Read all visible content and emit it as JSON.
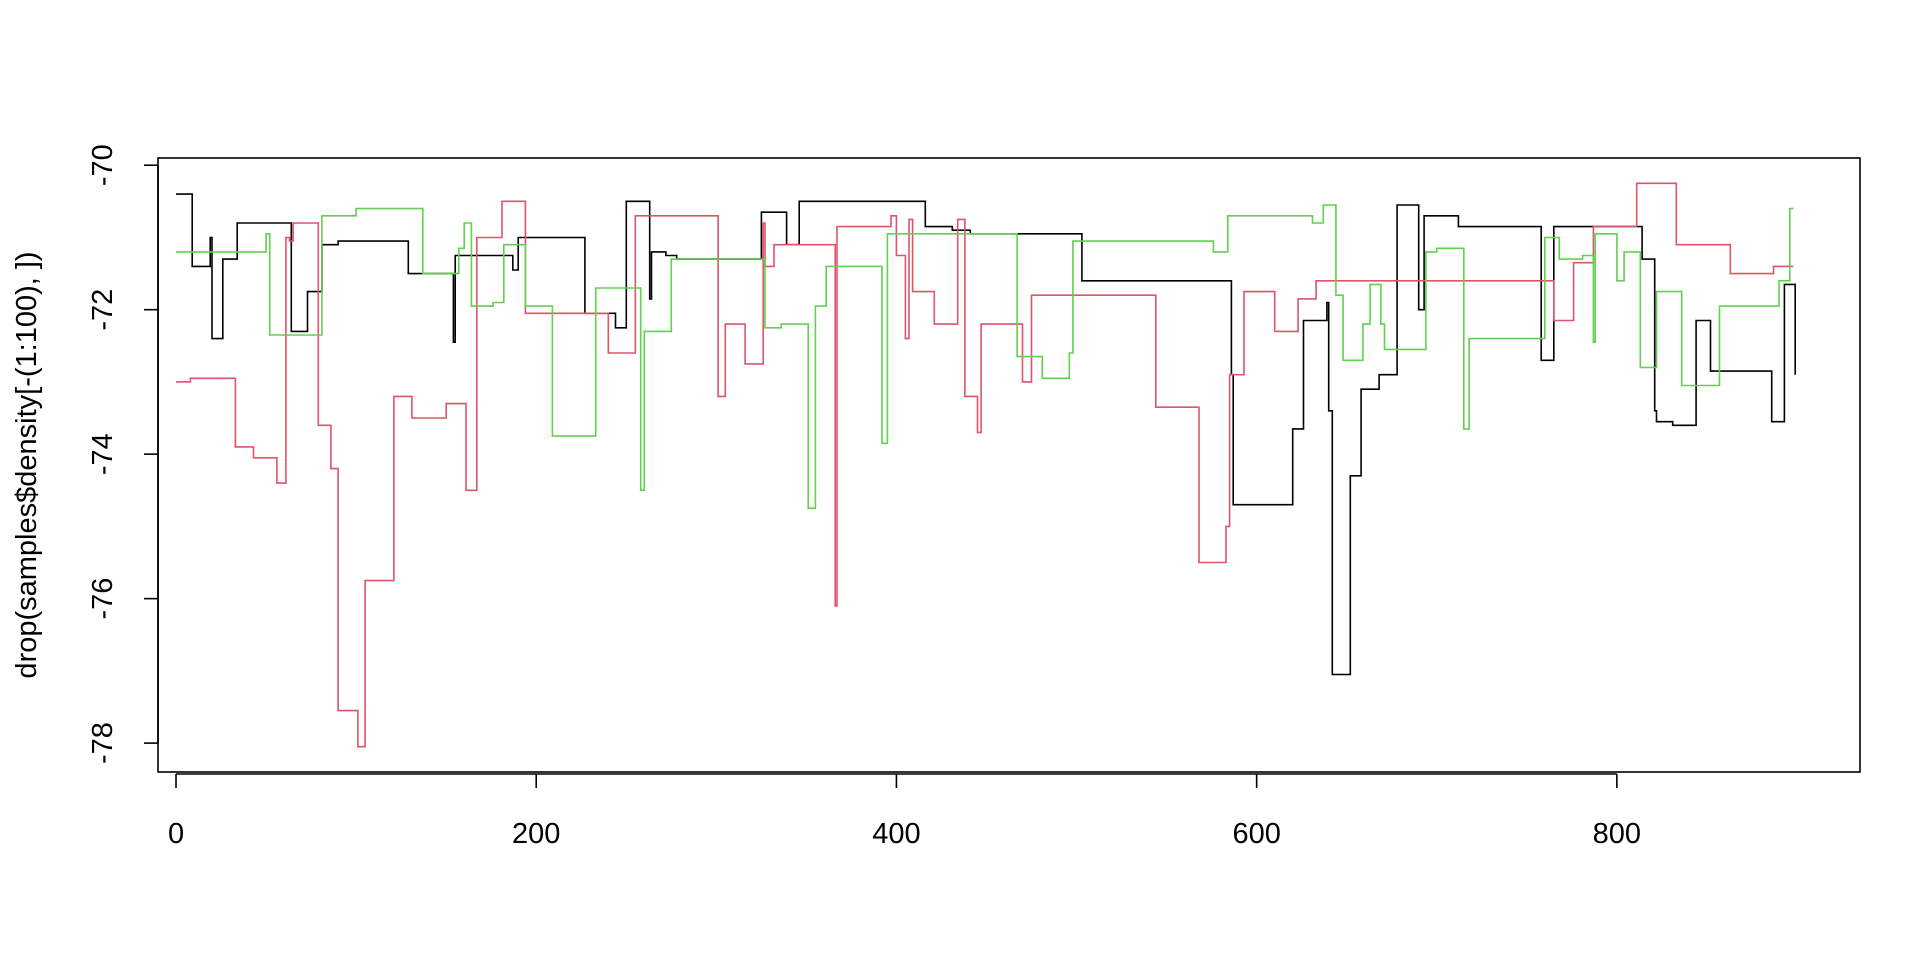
{
  "chart_data": {
    "type": "line",
    "title": "",
    "xlabel": "",
    "ylabel": "drop(samples$density[-(1:100), ])",
    "xlim": [
      -10,
      935
    ],
    "ylim": [
      -78.4,
      -69.9
    ],
    "x_ticks": [
      0,
      200,
      400,
      600,
      800
    ],
    "y_ticks": [
      -70,
      -72,
      -74,
      -76,
      -78
    ],
    "grid": false,
    "legend": "none",
    "series": [
      {
        "color": "#000000",
        "step": true,
        "points": [
          [
            0,
            -70.4
          ],
          [
            8,
            -70.4
          ],
          [
            9,
            -71.4
          ],
          [
            18,
            -71.4
          ],
          [
            19,
            -71.0
          ],
          [
            20,
            -72.4
          ],
          [
            25,
            -72.4
          ],
          [
            26,
            -71.3
          ],
          [
            33,
            -71.3
          ],
          [
            34,
            -70.8
          ],
          [
            63,
            -70.8
          ],
          [
            64,
            -72.3
          ],
          [
            72,
            -72.3
          ],
          [
            73,
            -71.75
          ],
          [
            80,
            -71.75
          ],
          [
            81,
            -71.1
          ],
          [
            89,
            -71.1
          ],
          [
            90,
            -71.05
          ],
          [
            128,
            -71.05
          ],
          [
            129,
            -71.5
          ],
          [
            153,
            -71.5
          ],
          [
            154,
            -72.45
          ],
          [
            155,
            -71.25
          ],
          [
            186,
            -71.25
          ],
          [
            187,
            -71.45
          ],
          [
            190,
            -71.0
          ],
          [
            226,
            -71.0
          ],
          [
            227,
            -72.05
          ],
          [
            243,
            -72.05
          ],
          [
            244,
            -72.25
          ],
          [
            248,
            -72.25
          ],
          [
            250,
            -70.5
          ],
          [
            262,
            -70.5
          ],
          [
            263,
            -71.85
          ],
          [
            264,
            -71.2
          ],
          [
            270,
            -71.2
          ],
          [
            272,
            -71.25
          ],
          [
            278,
            -71.3
          ],
          [
            324,
            -71.3
          ],
          [
            325,
            -70.65
          ],
          [
            338,
            -70.65
          ],
          [
            339,
            -71.1
          ],
          [
            345,
            -71.1
          ],
          [
            346,
            -70.5
          ],
          [
            415,
            -70.5
          ],
          [
            416,
            -70.85
          ],
          [
            430,
            -70.85
          ],
          [
            431,
            -70.9
          ],
          [
            440,
            -70.9
          ],
          [
            441,
            -70.95
          ],
          [
            502,
            -70.95
          ],
          [
            503,
            -71.6
          ],
          [
            584,
            -71.6
          ],
          [
            586,
            -72.9
          ],
          [
            587,
            -74.7
          ],
          [
            619,
            -74.7
          ],
          [
            620,
            -73.65
          ],
          [
            625,
            -73.65
          ],
          [
            626,
            -72.15
          ],
          [
            638,
            -72.15
          ],
          [
            639,
            -71.9
          ],
          [
            640,
            -73.4
          ],
          [
            642,
            -77.05
          ],
          [
            651,
            -77.05
          ],
          [
            652,
            -74.3
          ],
          [
            656,
            -74.3
          ],
          [
            658,
            -73.1
          ],
          [
            667,
            -73.1
          ],
          [
            668,
            -72.9
          ],
          [
            677,
            -72.9
          ],
          [
            678,
            -70.55
          ],
          [
            689,
            -70.55
          ],
          [
            690,
            -72.0
          ],
          [
            692,
            -72.0
          ],
          [
            693,
            -70.7
          ],
          [
            711,
            -70.7
          ],
          [
            712,
            -70.85
          ],
          [
            757,
            -70.85
          ],
          [
            758,
            -72.7
          ],
          [
            764,
            -72.7
          ],
          [
            765,
            -70.85
          ],
          [
            813,
            -70.85
          ],
          [
            814,
            -71.3
          ],
          [
            820,
            -71.3
          ],
          [
            821,
            -73.4
          ],
          [
            822,
            -73.55
          ],
          [
            830,
            -73.55
          ],
          [
            831,
            -73.6
          ],
          [
            843,
            -73.6
          ],
          [
            844,
            -72.15
          ],
          [
            851,
            -72.15
          ],
          [
            852,
            -72.85
          ],
          [
            885,
            -72.85
          ],
          [
            886,
            -73.55
          ],
          [
            892,
            -73.55
          ],
          [
            893,
            -71.65
          ],
          [
            898,
            -71.65
          ],
          [
            899,
            -72.9
          ]
        ]
      },
      {
        "color": "#DF536B",
        "step": true,
        "points": [
          [
            0,
            -73.0
          ],
          [
            6,
            -73.0
          ],
          [
            8,
            -72.95
          ],
          [
            32,
            -72.95
          ],
          [
            33,
            -73.9
          ],
          [
            42,
            -73.9
          ],
          [
            43,
            -74.05
          ],
          [
            55,
            -74.05
          ],
          [
            56,
            -74.4
          ],
          [
            60,
            -74.4
          ],
          [
            61,
            -71.0
          ],
          [
            62,
            -71.0
          ],
          [
            63,
            -71.05
          ],
          [
            65,
            -70.8
          ],
          [
            78,
            -70.8
          ],
          [
            79,
            -73.6
          ],
          [
            85,
            -73.6
          ],
          [
            86,
            -74.2
          ],
          [
            88,
            -74.2
          ],
          [
            90,
            -77.55
          ],
          [
            100,
            -77.55
          ],
          [
            101,
            -78.05
          ],
          [
            104,
            -78.05
          ],
          [
            105,
            -75.75
          ],
          [
            120,
            -75.75
          ],
          [
            121,
            -73.2
          ],
          [
            130,
            -73.2
          ],
          [
            131,
            -73.5
          ],
          [
            149,
            -73.5
          ],
          [
            150,
            -73.3
          ],
          [
            160,
            -73.3
          ],
          [
            161,
            -74.5
          ],
          [
            164,
            -74.5
          ],
          [
            167,
            -71.0
          ],
          [
            180,
            -71.0
          ],
          [
            181,
            -70.5
          ],
          [
            193,
            -70.5
          ],
          [
            194,
            -72.05
          ],
          [
            239,
            -72.05
          ],
          [
            240,
            -72.6
          ],
          [
            254,
            -72.6
          ],
          [
            255,
            -70.7
          ],
          [
            300,
            -70.7
          ],
          [
            301,
            -73.2
          ],
          [
            304,
            -73.2
          ],
          [
            305,
            -72.2
          ],
          [
            315,
            -72.2
          ],
          [
            316,
            -72.75
          ],
          [
            325,
            -72.75
          ],
          [
            326,
            -70.8
          ],
          [
            327,
            -71.4
          ],
          [
            331,
            -71.4
          ],
          [
            332,
            -71.1
          ],
          [
            365,
            -71.1
          ],
          [
            366,
            -76.1
          ],
          [
            367,
            -70.85
          ],
          [
            396,
            -70.85
          ],
          [
            397,
            -70.7
          ],
          [
            399,
            -70.7
          ],
          [
            400,
            -71.25
          ],
          [
            404,
            -71.25
          ],
          [
            405,
            -72.4
          ],
          [
            406,
            -72.4
          ],
          [
            407,
            -70.75
          ],
          [
            409,
            -71.75
          ],
          [
            420,
            -71.75
          ],
          [
            421,
            -72.2
          ],
          [
            433,
            -72.2
          ],
          [
            434,
            -70.75
          ],
          [
            437,
            -70.75
          ],
          [
            438,
            -73.2
          ],
          [
            444,
            -73.2
          ],
          [
            445,
            -73.7
          ],
          [
            446,
            -73.7
          ],
          [
            447,
            -72.2
          ],
          [
            469,
            -72.2
          ],
          [
            470,
            -73.0
          ],
          [
            474,
            -73.0
          ],
          [
            475,
            -71.8
          ],
          [
            543,
            -71.8
          ],
          [
            544,
            -73.35
          ],
          [
            567,
            -73.35
          ],
          [
            568,
            -75.5
          ],
          [
            582,
            -75.5
          ],
          [
            583,
            -75.0
          ],
          [
            585,
            -72.9
          ],
          [
            592,
            -72.9
          ],
          [
            593,
            -71.75
          ],
          [
            609,
            -71.75
          ],
          [
            610,
            -72.3
          ],
          [
            622,
            -72.3
          ],
          [
            623,
            -71.85
          ],
          [
            632,
            -71.85
          ],
          [
            633,
            -71.6
          ],
          [
            764,
            -71.6
          ],
          [
            765,
            -72.15
          ],
          [
            775,
            -72.15
          ],
          [
            776,
            -71.35
          ],
          [
            786,
            -71.35
          ],
          [
            787,
            -70.85
          ],
          [
            810,
            -70.85
          ],
          [
            811,
            -70.25
          ],
          [
            832,
            -70.25
          ],
          [
            833,
            -71.1
          ],
          [
            862,
            -71.1
          ],
          [
            863,
            -71.5
          ],
          [
            885,
            -71.5
          ],
          [
            887,
            -71.4
          ],
          [
            898,
            -71.4
          ]
        ]
      },
      {
        "color": "#61D04F",
        "step": true,
        "points": [
          [
            0,
            -71.2
          ],
          [
            49,
            -71.2
          ],
          [
            50,
            -70.95
          ],
          [
            52,
            -72.35
          ],
          [
            80,
            -72.35
          ],
          [
            81,
            -70.7
          ],
          [
            99,
            -70.7
          ],
          [
            100,
            -70.6
          ],
          [
            136,
            -70.6
          ],
          [
            137,
            -71.5
          ],
          [
            156,
            -71.5
          ],
          [
            157,
            -71.15
          ],
          [
            160,
            -70.8
          ],
          [
            163,
            -70.8
          ],
          [
            164,
            -71.95
          ],
          [
            175,
            -71.95
          ],
          [
            176,
            -71.9
          ],
          [
            181,
            -71.9
          ],
          [
            182,
            -71.1
          ],
          [
            193,
            -71.1
          ],
          [
            194,
            -71.95
          ],
          [
            208,
            -71.95
          ],
          [
            209,
            -73.75
          ],
          [
            232,
            -73.75
          ],
          [
            233,
            -71.7
          ],
          [
            257,
            -71.7
          ],
          [
            258,
            -74.5
          ],
          [
            260,
            -72.3
          ],
          [
            274,
            -72.3
          ],
          [
            275,
            -71.3
          ],
          [
            326,
            -71.3
          ],
          [
            327,
            -72.25
          ],
          [
            335,
            -72.25
          ],
          [
            336,
            -72.2
          ],
          [
            350,
            -72.2
          ],
          [
            351,
            -74.75
          ],
          [
            354,
            -74.75
          ],
          [
            355,
            -71.95
          ],
          [
            360,
            -71.95
          ],
          [
            361,
            -71.4
          ],
          [
            391,
            -71.4
          ],
          [
            392,
            -73.85
          ],
          [
            394,
            -73.85
          ],
          [
            395,
            -70.95
          ],
          [
            466,
            -70.95
          ],
          [
            467,
            -72.65
          ],
          [
            480,
            -72.65
          ],
          [
            481,
            -72.95
          ],
          [
            494,
            -72.95
          ],
          [
            496,
            -72.6
          ],
          [
            497,
            -72.6
          ],
          [
            498,
            -71.05
          ],
          [
            575,
            -71.05
          ],
          [
            576,
            -71.2
          ],
          [
            583,
            -71.2
          ],
          [
            584,
            -70.7
          ],
          [
            630,
            -70.7
          ],
          [
            631,
            -70.8
          ],
          [
            636,
            -70.8
          ],
          [
            637,
            -70.55
          ],
          [
            643,
            -70.55
          ],
          [
            644,
            -71.8
          ],
          [
            647,
            -71.8
          ],
          [
            648,
            -72.7
          ],
          [
            658,
            -72.7
          ],
          [
            659,
            -72.2
          ],
          [
            662,
            -72.2
          ],
          [
            663,
            -71.65
          ],
          [
            667,
            -71.65
          ],
          [
            669,
            -72.2
          ],
          [
            670,
            -72.2
          ],
          [
            671,
            -72.55
          ],
          [
            693,
            -72.55
          ],
          [
            694,
            -71.2
          ],
          [
            697,
            -71.2
          ],
          [
            700,
            -71.15
          ],
          [
            714,
            -71.15
          ],
          [
            715,
            -73.65
          ],
          [
            717,
            -73.65
          ],
          [
            718,
            -72.4
          ],
          [
            759,
            -72.4
          ],
          [
            760,
            -71.0
          ],
          [
            767,
            -71.0
          ],
          [
            768,
            -71.3
          ],
          [
            780,
            -71.3
          ],
          [
            781,
            -71.25
          ],
          [
            786,
            -71.25
          ],
          [
            787,
            -72.45
          ],
          [
            788,
            -70.95
          ],
          [
            799,
            -70.95
          ],
          [
            800,
            -71.6
          ],
          [
            803,
            -71.6
          ],
          [
            804,
            -71.2
          ],
          [
            810,
            -71.2
          ],
          [
            813,
            -72.8
          ],
          [
            821,
            -72.8
          ],
          [
            822,
            -71.75
          ],
          [
            835,
            -71.75
          ],
          [
            836,
            -73.05
          ],
          [
            856,
            -73.05
          ],
          [
            857,
            -71.95
          ],
          [
            889,
            -71.95
          ],
          [
            890,
            -71.6
          ],
          [
            896,
            -70.6
          ],
          [
            898,
            -70.6
          ]
        ]
      }
    ]
  }
}
